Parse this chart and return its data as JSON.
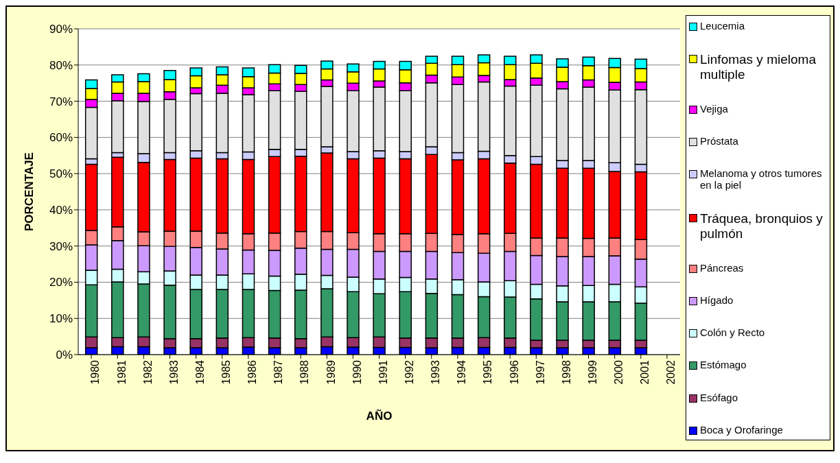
{
  "chart_data": {
    "type": "bar",
    "stacked": true,
    "xlabel": "AÑO",
    "ylabel": "PORCENTAJE",
    "categories": [
      "1980",
      "1981",
      "1982",
      "1983",
      "1984",
      "1985",
      "1986",
      "1987",
      "1988",
      "1989",
      "1990",
      "1991",
      "1992",
      "1993",
      "1994",
      "1995",
      "1996",
      "1997",
      "1998",
      "1999",
      "2000",
      "2001",
      "2002"
    ],
    "ylim": [
      0,
      90
    ],
    "yticks": [
      {
        "value": 0,
        "label": "0%"
      },
      {
        "value": 10,
        "label": "10%"
      },
      {
        "value": 20,
        "label": "20%"
      },
      {
        "value": 30,
        "label": "30%"
      },
      {
        "value": 40,
        "label": "40%"
      },
      {
        "value": 50,
        "label": "50%"
      },
      {
        "value": 60,
        "label": "60%"
      },
      {
        "value": 70,
        "label": "70%"
      },
      {
        "value": 80,
        "label": "80%"
      },
      {
        "value": 90,
        "label": "90%"
      }
    ],
    "grid": "y",
    "legend": "right",
    "series": [
      {
        "name": "Boca y Orofaringe",
        "color": "#0000ff",
        "values": [
          1.9,
          2.2,
          2.2,
          1.9,
          1.9,
          1.9,
          2.1,
          1.9,
          1.9,
          2.2,
          2.1,
          2.0,
          2.0,
          1.9,
          2.0,
          2.0,
          2.0,
          1.9,
          1.9,
          1.9,
          1.9,
          1.9,
          null
        ]
      },
      {
        "name": "Esófago",
        "color": "#993366",
        "values": [
          3.0,
          2.5,
          2.7,
          2.5,
          2.5,
          2.7,
          2.6,
          2.7,
          2.5,
          2.7,
          2.6,
          2.9,
          2.6,
          2.7,
          2.6,
          2.7,
          2.6,
          2.1,
          2.1,
          2.1,
          2.1,
          2.1,
          null
        ]
      },
      {
        "name": "Estómago",
        "color": "#339966",
        "values": [
          14.4,
          15.4,
          14.6,
          14.8,
          13.6,
          13.4,
          13.3,
          13.1,
          13.4,
          13.3,
          12.7,
          11.9,
          12.8,
          12.3,
          12.0,
          11.3,
          11.3,
          11.4,
          10.6,
          10.6,
          10.6,
          10.2,
          null
        ]
      },
      {
        "name": "Colón y Recto",
        "color": "#ccffff",
        "values": [
          4.0,
          3.5,
          3.4,
          3.9,
          4.0,
          4.0,
          4.3,
          4.0,
          4.4,
          3.7,
          4.0,
          4.1,
          3.9,
          4.0,
          4.1,
          4.1,
          4.5,
          4.0,
          4.4,
          4.5,
          4.8,
          4.5,
          null
        ]
      },
      {
        "name": "Hígado",
        "color": "#cc99ff",
        "values": [
          7.0,
          7.9,
          7.2,
          6.8,
          7.6,
          7.2,
          6.6,
          7.1,
          7.2,
          7.2,
          7.7,
          7.6,
          7.2,
          7.6,
          7.5,
          7.9,
          8.1,
          8.0,
          8.1,
          8.0,
          7.9,
          7.7,
          null
        ]
      },
      {
        "name": "Páncreas",
        "color": "#ff8080",
        "values": [
          4.0,
          3.8,
          3.8,
          4.2,
          4.5,
          4.4,
          4.5,
          4.8,
          4.6,
          4.9,
          4.6,
          4.9,
          4.9,
          5.0,
          5.0,
          5.4,
          5.0,
          4.8,
          5.1,
          5.0,
          4.9,
          5.4,
          null
        ]
      },
      {
        "name": "Tráquea, bronquios y pulmón",
        "color": "#ff0000",
        "values": [
          18.3,
          19.2,
          19.2,
          19.8,
          20.2,
          20.5,
          20.5,
          21.1,
          20.8,
          21.7,
          20.4,
          20.9,
          20.7,
          21.8,
          20.6,
          20.7,
          19.4,
          20.4,
          19.3,
          19.4,
          18.4,
          18.7,
          null
        ]
      },
      {
        "name": "Melanoma y otros tumores en la piel",
        "color": "#ccccff",
        "values": [
          1.5,
          1.3,
          2.4,
          1.9,
          2.0,
          1.7,
          2.1,
          2.0,
          1.9,
          1.7,
          2.0,
          2.0,
          2.0,
          2.1,
          2.0,
          2.1,
          2.1,
          2.1,
          2.1,
          2.1,
          2.4,
          2.1,
          null
        ]
      },
      {
        "name": "Próstata",
        "color": "#e0e0e0",
        "values": [
          14.2,
          14.3,
          14.4,
          14.7,
          15.8,
          16.4,
          15.8,
          16.2,
          16.0,
          16.7,
          16.8,
          17.6,
          16.8,
          17.7,
          18.8,
          19.1,
          19.2,
          19.7,
          19.8,
          20.3,
          20.1,
          20.6,
          null
        ]
      },
      {
        "name": "Vejiga",
        "color": "#ff00ff",
        "values": [
          2.2,
          2.1,
          2.3,
          2.1,
          1.6,
          2.2,
          1.9,
          1.9,
          1.9,
          1.8,
          2.1,
          1.7,
          2.2,
          2.1,
          2.1,
          1.8,
          1.8,
          2.0,
          2.0,
          2.0,
          2.1,
          2.1,
          null
        ]
      },
      {
        "name": "Linfomas y mieloma multiple",
        "color": "#ffff00",
        "values": [
          3.0,
          3.1,
          3.2,
          3.4,
          3.3,
          2.9,
          3.1,
          3.0,
          3.1,
          3.0,
          3.1,
          3.3,
          3.6,
          3.3,
          3.4,
          3.5,
          4.1,
          4.1,
          4.0,
          3.9,
          4.1,
          3.7,
          null
        ]
      },
      {
        "name": "Leucemia",
        "color": "#00ffff",
        "values": [
          2.4,
          2.0,
          2.2,
          2.5,
          2.2,
          2.2,
          2.4,
          2.3,
          2.2,
          2.2,
          2.2,
          2.1,
          2.3,
          1.9,
          2.3,
          2.2,
          2.3,
          2.3,
          2.3,
          2.4,
          2.5,
          2.6,
          null
        ]
      }
    ]
  }
}
